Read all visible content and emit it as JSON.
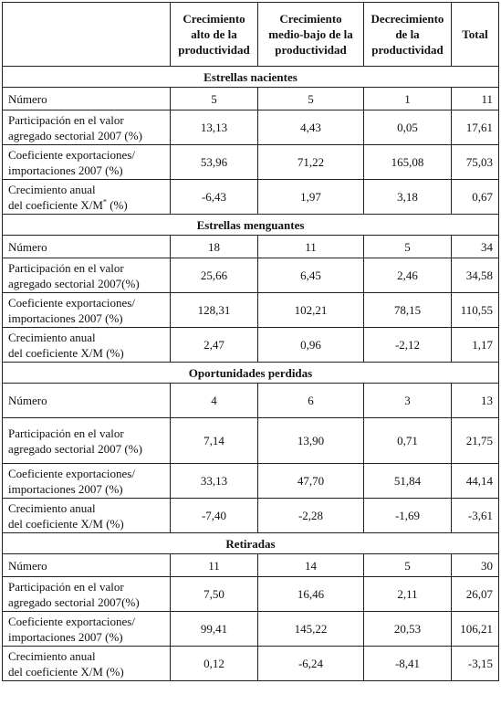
{
  "headers": {
    "col1": "Crecimiento alto de la productividad",
    "col2": "Crecimiento medio-bajo de la productividad",
    "col3": "Decrecimiento de la productividad",
    "col4": "Total"
  },
  "sections": [
    {
      "title": "Estrellas nacientes",
      "rows": [
        {
          "l1": "Número",
          "l2": "",
          "v": [
            "5",
            "5",
            "1",
            "11"
          ]
        },
        {
          "l1": "Participación en el valor",
          "l2": "agregado sectorial 2007 (%)",
          "v": [
            "13,13",
            "4,43",
            "0,05",
            "17,61"
          ]
        },
        {
          "l1": "Coeficiente exportaciones/",
          "l2": "importaciones 2007 (%)",
          "v": [
            "53,96",
            "71,22",
            "165,08",
            "75,03"
          ]
        },
        {
          "l1": "Crecimiento anual",
          "l2": "del coeficiente X/M",
          "sup": "*",
          "l2b": " (%)",
          "v": [
            "-6,43",
            "1,97",
            "3,18",
            "0,67"
          ]
        }
      ]
    },
    {
      "title": "Estrellas menguantes",
      "rows": [
        {
          "l1": "Número",
          "l2": "",
          "v": [
            "18",
            "11",
            "5",
            "34"
          ]
        },
        {
          "l1": "Participación en el valor",
          "l2": "agregado sectorial 2007(%)",
          "v": [
            "25,66",
            "6,45",
            "2,46",
            "34,58"
          ]
        },
        {
          "l1": "Coeficiente exportaciones/",
          "l2": "importaciones 2007 (%)",
          "v": [
            "128,31",
            "102,21",
            "78,15",
            "110,55"
          ]
        },
        {
          "l1": "Crecimiento anual",
          "l2": "del coeficiente X/M (%)",
          "v": [
            "2,47",
            "0,96",
            "-2,12",
            "1,17"
          ]
        }
      ]
    },
    {
      "title": "Oportunidades perdidas",
      "rows": [
        {
          "l1": "Número",
          "l2": "",
          "v": [
            "4",
            "6",
            "3",
            "13"
          ]
        },
        {
          "l1": "Participación en el valor",
          "l2": "agregado sectorial 2007 (%)",
          "v": [
            "7,14",
            "13,90",
            "0,71",
            "21,75"
          ]
        },
        {
          "l1": "Coeficiente exportaciones/",
          "l2": "importaciones 2007 (%)",
          "v": [
            "33,13",
            "47,70",
            "51,84",
            "44,14"
          ]
        },
        {
          "l1": "Crecimiento anual",
          "l2": "del coeficiente X/M (%)",
          "v": [
            "-7,40",
            "-2,28",
            "-1,69",
            "-3,61"
          ]
        }
      ]
    },
    {
      "title": "Retiradas",
      "rows": [
        {
          "l1": "Número",
          "l2": "",
          "v": [
            "11",
            "14",
            "5",
            "30"
          ]
        },
        {
          "l1": "Participación en el valor",
          "l2": "agregado sectorial 2007(%)",
          "v": [
            "7,50",
            "16,46",
            "2,11",
            "26,07"
          ]
        },
        {
          "l1": "Coeficiente exportaciones/",
          "l2": "importaciones 2007 (%)",
          "v": [
            "99,41",
            "145,22",
            "20,53",
            "106,21"
          ]
        },
        {
          "l1": "Crecimiento anual",
          "l2": "del coeficiente X/M (%)",
          "v": [
            "0,12",
            "-6,24",
            "-8,41",
            "-3,15"
          ]
        }
      ]
    }
  ]
}
